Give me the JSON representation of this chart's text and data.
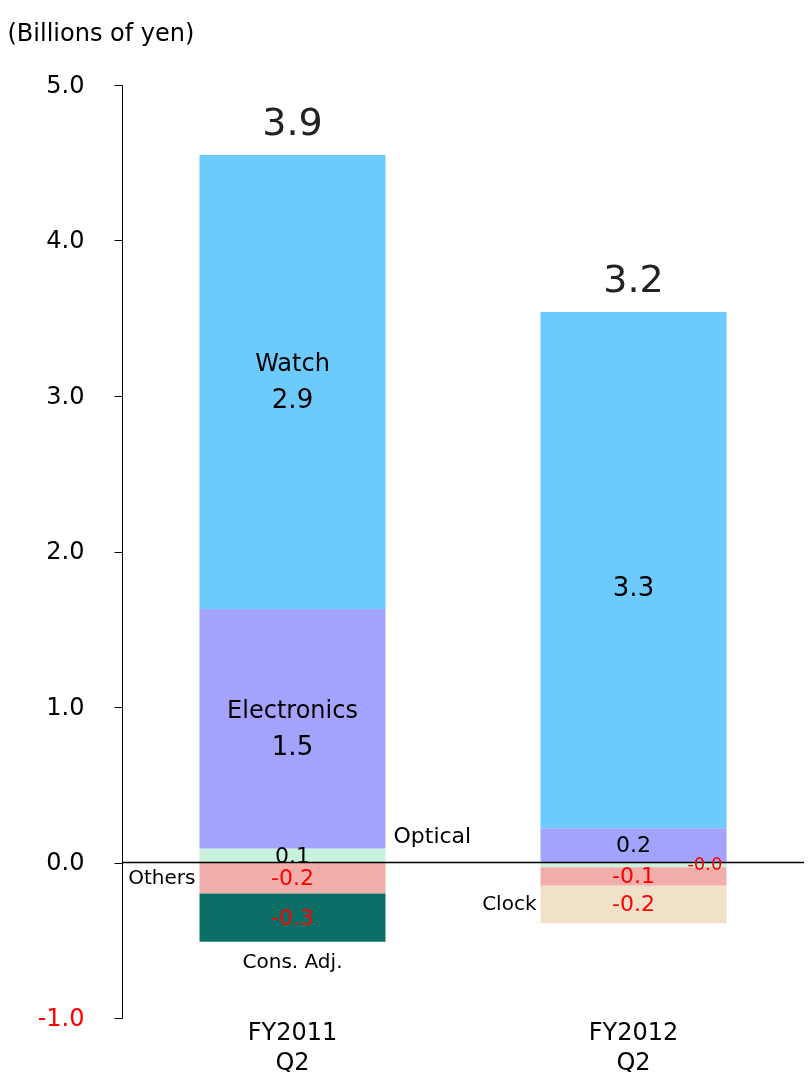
{
  "chart_data": {
    "type": "bar",
    "stacked": true,
    "ylabel": "(Billions of yen)",
    "categories": [
      "FY2011 Q2",
      "FY2012 Q2"
    ],
    "series": [
      {
        "name": "Optical",
        "color": "#c8f2dc",
        "values": [
          0.09,
          -0.03
        ],
        "value_labels": [
          "0.1",
          "-0.0"
        ]
      },
      {
        "name": "Electronics",
        "color": "#a3a3fb",
        "values": [
          1.54,
          0.22
        ],
        "value_labels": [
          "1.5",
          "0.2"
        ]
      },
      {
        "name": "Watch",
        "color": "#6ccbfb",
        "values": [
          2.92,
          3.32
        ],
        "value_labels": [
          "2.9",
          "3.3"
        ]
      },
      {
        "name": "Others",
        "color": "#f2aeab",
        "values": [
          -0.2,
          -0.12
        ],
        "value_labels": [
          "-0.2",
          "-0.1"
        ]
      },
      {
        "name": "Clock",
        "color": "#f1e1c9",
        "values": [
          null,
          -0.24
        ],
        "value_labels": [
          null,
          "-0.2"
        ]
      },
      {
        "name": "Cons. Adj.",
        "color": "#0b6f67",
        "values": [
          -0.31,
          null
        ],
        "value_labels": [
          "-0.3",
          null
        ]
      }
    ],
    "totals": [
      "3.9",
      "3.2"
    ],
    "ylim": [
      -1.0,
      5.0
    ],
    "yticks": [
      {
        "value": -1,
        "label": "-1.0"
      },
      {
        "value": 0,
        "label": "0.0"
      },
      {
        "value": 1,
        "label": "1.0"
      },
      {
        "value": 2,
        "label": "2.0"
      },
      {
        "value": 3,
        "label": "3.0"
      },
      {
        "value": 4,
        "label": "4.0"
      },
      {
        "value": 5,
        "label": "5.0"
      }
    ],
    "ref_lines": [
      {
        "axis": "y",
        "value": 0
      }
    ],
    "grid": false
  }
}
